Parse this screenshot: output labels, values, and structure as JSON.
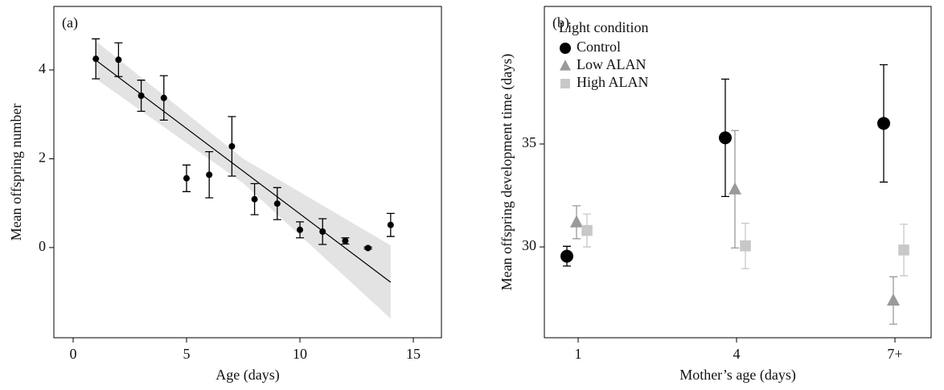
{
  "chart_data": [
    {
      "type": "scatter",
      "panel_label": "(a)",
      "xlabel": "Age (days)",
      "ylabel": "Mean offspring number",
      "x": [
        1,
        2,
        3,
        4,
        5,
        6,
        7,
        8,
        9,
        10,
        11,
        12,
        13,
        14
      ],
      "values": [
        4.25,
        4.23,
        3.42,
        3.37,
        1.56,
        1.64,
        2.28,
        1.09,
        0.99,
        0.4,
        0.36,
        0.15,
        -0.01,
        0.51
      ],
      "errors": [
        0.45,
        0.38,
        0.35,
        0.5,
        0.3,
        0.52,
        0.67,
        0.35,
        0.36,
        0.18,
        0.29,
        0.07,
        0.02,
        0.26
      ],
      "color": "#000000",
      "fit": {
        "x": [
          1,
          14
        ],
        "y": [
          4.22,
          -0.78
        ]
      },
      "band": {
        "x": [
          1,
          7.5,
          14
        ],
        "lower": [
          3.8,
          1.45,
          -1.6
        ],
        "upper": [
          4.65,
          2.0,
          0.05
        ],
        "color": "#e3e3e3"
      },
      "xlim": [
        -0.85,
        16.24
      ],
      "ylim": [
        -2.03,
        5.43
      ],
      "xticks": [
        0,
        5,
        10,
        15
      ],
      "yticks": [
        0,
        2,
        4
      ]
    },
    {
      "type": "dot",
      "panel_label": "(b)",
      "xlabel": "Mother’s age (days)",
      "ylabel": "Mean offspring development time (days)",
      "legend_title": "Light condition",
      "legend": "upper left",
      "categories": [
        "1",
        "4",
        "7+"
      ],
      "series": [
        {
          "name": "Control",
          "color": "#000000",
          "marker": "circle",
          "values": [
            29.55,
            35.3,
            36.0
          ],
          "errors": [
            0.48,
            2.85,
            2.85
          ]
        },
        {
          "name": "Low ALAN",
          "color": "#9a9a9a",
          "marker": "triangle",
          "values": [
            31.2,
            32.8,
            27.4
          ],
          "errors": [
            0.8,
            2.85,
            1.15
          ]
        },
        {
          "name": "High ALAN",
          "color": "#c8c8c8",
          "marker": "square",
          "values": [
            30.8,
            30.05,
            29.85
          ],
          "errors": [
            0.8,
            1.1,
            1.25
          ]
        }
      ],
      "ylim": [
        25.59,
        41.68
      ],
      "yticks": [
        30,
        35
      ]
    }
  ]
}
